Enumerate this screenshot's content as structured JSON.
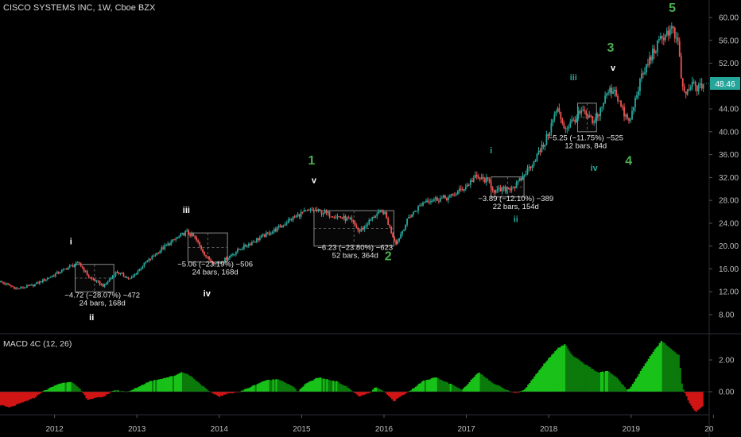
{
  "header": {
    "title": "CISCO SYSTEMS INC, 1W, Cboe BZX"
  },
  "macd_panel": {
    "title": "MACD 4C (12, 26)"
  },
  "colors": {
    "background": "#000000",
    "up_candle": "#26a69a",
    "down_candle": "#ef5350",
    "macd_up": "#19c219",
    "macd_up_dark": "#0b7a0b",
    "macd_down": "#d11414",
    "wave_major": "#4caf50",
    "wave_minor_green": "#26a69a",
    "wave_minor_white": "#ffffff",
    "price_badge": "#26a69a"
  },
  "chart_data": [
    {
      "type": "candlestick",
      "title": "CISCO SYSTEMS INC, 1W, Cboe BZX",
      "x_tick_labels": [
        "2012",
        "2013",
        "2014",
        "2015",
        "2016",
        "2017",
        "2018",
        "2019",
        "20"
      ],
      "y_tick_labels": [
        "60.00",
        "56.00",
        "52.00",
        "48.00",
        "44.00",
        "40.00",
        "36.00",
        "32.00",
        "28.00",
        "24.00",
        "20.00",
        "16.00",
        "12.00",
        "8.00"
      ],
      "ylim": [
        5,
        62
      ],
      "last_price": "48.46",
      "price_path": [
        [
          2011.3,
          14.0
        ],
        [
          2011.55,
          12.5
        ],
        [
          2011.75,
          13.2
        ],
        [
          2012.0,
          15.0
        ],
        [
          2012.2,
          16.5
        ],
        [
          2012.3,
          17.0
        ],
        [
          2012.42,
          14.5
        ],
        [
          2012.6,
          13.0
        ],
        [
          2012.75,
          15.5
        ],
        [
          2012.92,
          14.2
        ],
        [
          2013.1,
          17.0
        ],
        [
          2013.3,
          19.5
        ],
        [
          2013.5,
          21.5
        ],
        [
          2013.6,
          22.5
        ],
        [
          2013.7,
          21.5
        ],
        [
          2013.85,
          18.0
        ],
        [
          2013.95,
          17.0
        ],
        [
          2014.05,
          17.5
        ],
        [
          2014.25,
          19.5
        ],
        [
          2014.5,
          21.5
        ],
        [
          2014.7,
          23.0
        ],
        [
          2014.85,
          24.5
        ],
        [
          2015.0,
          25.8
        ],
        [
          2015.15,
          26.3
        ],
        [
          2015.35,
          25.5
        ],
        [
          2015.6,
          24.5
        ],
        [
          2015.7,
          22.5
        ],
        [
          2015.9,
          25.5
        ],
        [
          2016.0,
          26.0
        ],
        [
          2016.1,
          22.0
        ],
        [
          2016.15,
          20.5
        ],
        [
          2016.3,
          25.0
        ],
        [
          2016.5,
          28.0
        ],
        [
          2016.8,
          28.5
        ],
        [
          2017.0,
          30.5
        ],
        [
          2017.1,
          32.0
        ],
        [
          2017.25,
          31.5
        ],
        [
          2017.35,
          29.5
        ],
        [
          2017.6,
          30.5
        ],
        [
          2017.8,
          34.5
        ],
        [
          2017.95,
          38.0
        ],
        [
          2018.1,
          44.0
        ],
        [
          2018.2,
          40.5
        ],
        [
          2018.4,
          43.5
        ],
        [
          2018.55,
          41.5
        ],
        [
          2018.72,
          47.0
        ],
        [
          2018.8,
          47.5
        ],
        [
          2018.9,
          43.5
        ],
        [
          2018.98,
          41.5
        ],
        [
          2019.1,
          48.5
        ],
        [
          2019.25,
          53.5
        ],
        [
          2019.4,
          57.0
        ],
        [
          2019.5,
          58.0
        ],
        [
          2019.58,
          54.5
        ],
        [
          2019.62,
          47.5
        ],
        [
          2019.68,
          46.5
        ],
        [
          2019.75,
          48.5
        ],
        [
          2019.82,
          47.5
        ],
        [
          2019.88,
          48.46
        ]
      ],
      "annotations": [
        {
          "text": "−4.72 (−28.07%) −472",
          "text2": "24 bars, 168d",
          "x": 2012.58,
          "y": 11.0
        },
        {
          "text": "−5.06 (−23.19%) −506",
          "text2": "24 bars, 168d",
          "x": 2013.95,
          "y": 16.4
        },
        {
          "text": "−6.23 (−23.80%) −623",
          "text2": "52 bars, 364d",
          "x": 2015.65,
          "y": 19.3
        },
        {
          "text": "−3.89 (−12.10%) −389",
          "text2": "22 bars, 154d",
          "x": 2017.6,
          "y": 27.9
        },
        {
          "text": "−5.25 (−11.75%) −525",
          "text2": "12 bars, 84d",
          "x": 2018.45,
          "y": 38.5
        }
      ],
      "measure_boxes": [
        {
          "x0": 2012.25,
          "x1": 2012.72,
          "y0": 12.0,
          "y1": 16.8
        },
        {
          "x0": 2013.62,
          "x1": 2014.1,
          "y0": 17.2,
          "y1": 22.3
        },
        {
          "x0": 2015.15,
          "x1": 2016.12,
          "y0": 20.0,
          "y1": 26.2
        },
        {
          "x0": 2017.3,
          "x1": 2017.7,
          "y0": 28.6,
          "y1": 32.1
        },
        {
          "x0": 2018.35,
          "x1": 2018.58,
          "y0": 40.0,
          "y1": 45.0
        }
      ],
      "wave_labels": [
        {
          "text": "i",
          "x": 2012.2,
          "y": 20.3,
          "style": "minor_white"
        },
        {
          "text": "ii",
          "x": 2012.45,
          "y": 7.0,
          "style": "minor_white"
        },
        {
          "text": "iii",
          "x": 2013.6,
          "y": 25.8,
          "style": "minor_white"
        },
        {
          "text": "iv",
          "x": 2013.85,
          "y": 11.2,
          "style": "minor_white"
        },
        {
          "text": "v",
          "x": 2015.15,
          "y": 31.0,
          "style": "minor_white"
        },
        {
          "text": "1",
          "x": 2015.12,
          "y": 34.3,
          "style": "major"
        },
        {
          "text": "2",
          "x": 2016.05,
          "y": 17.5,
          "style": "major"
        },
        {
          "text": "i",
          "x": 2017.3,
          "y": 36.2,
          "style": "minor_green"
        },
        {
          "text": "ii",
          "x": 2017.6,
          "y": 24.2,
          "style": "minor_green"
        },
        {
          "text": "iii",
          "x": 2018.3,
          "y": 49.0,
          "style": "minor_green"
        },
        {
          "text": "3",
          "x": 2018.75,
          "y": 54.0,
          "style": "major"
        },
        {
          "text": "v",
          "x": 2018.78,
          "y": 50.7,
          "style": "minor_white"
        },
        {
          "text": "iv",
          "x": 2018.55,
          "y": 33.2,
          "style": "minor_green"
        },
        {
          "text": "4",
          "x": 2018.97,
          "y": 34.2,
          "style": "major"
        },
        {
          "text": "5",
          "x": 2019.5,
          "y": 61.0,
          "style": "major"
        }
      ]
    },
    {
      "type": "bar",
      "title": "MACD 4C (12, 26)",
      "y_tick_labels": [
        "2.00",
        "0.00"
      ],
      "ylim": [
        -1.5,
        3.7
      ],
      "histogram_path": [
        [
          2011.0,
          -0.3
        ],
        [
          2011.45,
          -1.0
        ],
        [
          2011.75,
          -0.4
        ],
        [
          2011.85,
          0.0
        ],
        [
          2012.05,
          0.5
        ],
        [
          2012.2,
          0.65
        ],
        [
          2012.32,
          0.1
        ],
        [
          2012.4,
          -0.5
        ],
        [
          2012.6,
          -0.3
        ],
        [
          2012.72,
          0.1
        ],
        [
          2012.9,
          0.0
        ],
        [
          2013.15,
          0.65
        ],
        [
          2013.45,
          1.0
        ],
        [
          2013.55,
          1.25
        ],
        [
          2013.65,
          1.0
        ],
        [
          2013.88,
          0.0
        ],
        [
          2014.0,
          -0.3
        ],
        [
          2014.12,
          -0.1
        ],
        [
          2014.25,
          0.0
        ],
        [
          2014.55,
          0.7
        ],
        [
          2014.72,
          0.8
        ],
        [
          2014.9,
          0.3
        ],
        [
          2014.95,
          0.0
        ],
        [
          2015.05,
          0.5
        ],
        [
          2015.2,
          0.9
        ],
        [
          2015.42,
          0.65
        ],
        [
          2015.55,
          0.3
        ],
        [
          2015.7,
          -0.3
        ],
        [
          2015.82,
          -0.1
        ],
        [
          2015.9,
          0.3
        ],
        [
          2016.0,
          0.0
        ],
        [
          2016.12,
          -0.6
        ],
        [
          2016.2,
          -0.3
        ],
        [
          2016.3,
          0.0
        ],
        [
          2016.48,
          0.7
        ],
        [
          2016.62,
          0.9
        ],
        [
          2016.8,
          0.5
        ],
        [
          2016.95,
          0.1
        ],
        [
          2017.05,
          0.7
        ],
        [
          2017.15,
          1.25
        ],
        [
          2017.3,
          0.6
        ],
        [
          2017.5,
          0.1
        ],
        [
          2017.6,
          -0.1
        ],
        [
          2017.7,
          0.1
        ],
        [
          2017.95,
          1.8
        ],
        [
          2018.1,
          2.7
        ],
        [
          2018.2,
          3.0
        ],
        [
          2018.28,
          2.3
        ],
        [
          2018.45,
          1.7
        ],
        [
          2018.6,
          1.2
        ],
        [
          2018.72,
          1.3
        ],
        [
          2018.82,
          0.9
        ],
        [
          2018.95,
          0.1
        ],
        [
          2019.0,
          0.3
        ],
        [
          2019.15,
          1.6
        ],
        [
          2019.28,
          2.6
        ],
        [
          2019.37,
          3.2
        ],
        [
          2019.48,
          2.7
        ],
        [
          2019.58,
          2.3
        ],
        [
          2019.62,
          0.3
        ],
        [
          2019.7,
          -0.6
        ],
        [
          2019.78,
          -1.3
        ],
        [
          2019.88,
          -0.9
        ]
      ]
    }
  ]
}
